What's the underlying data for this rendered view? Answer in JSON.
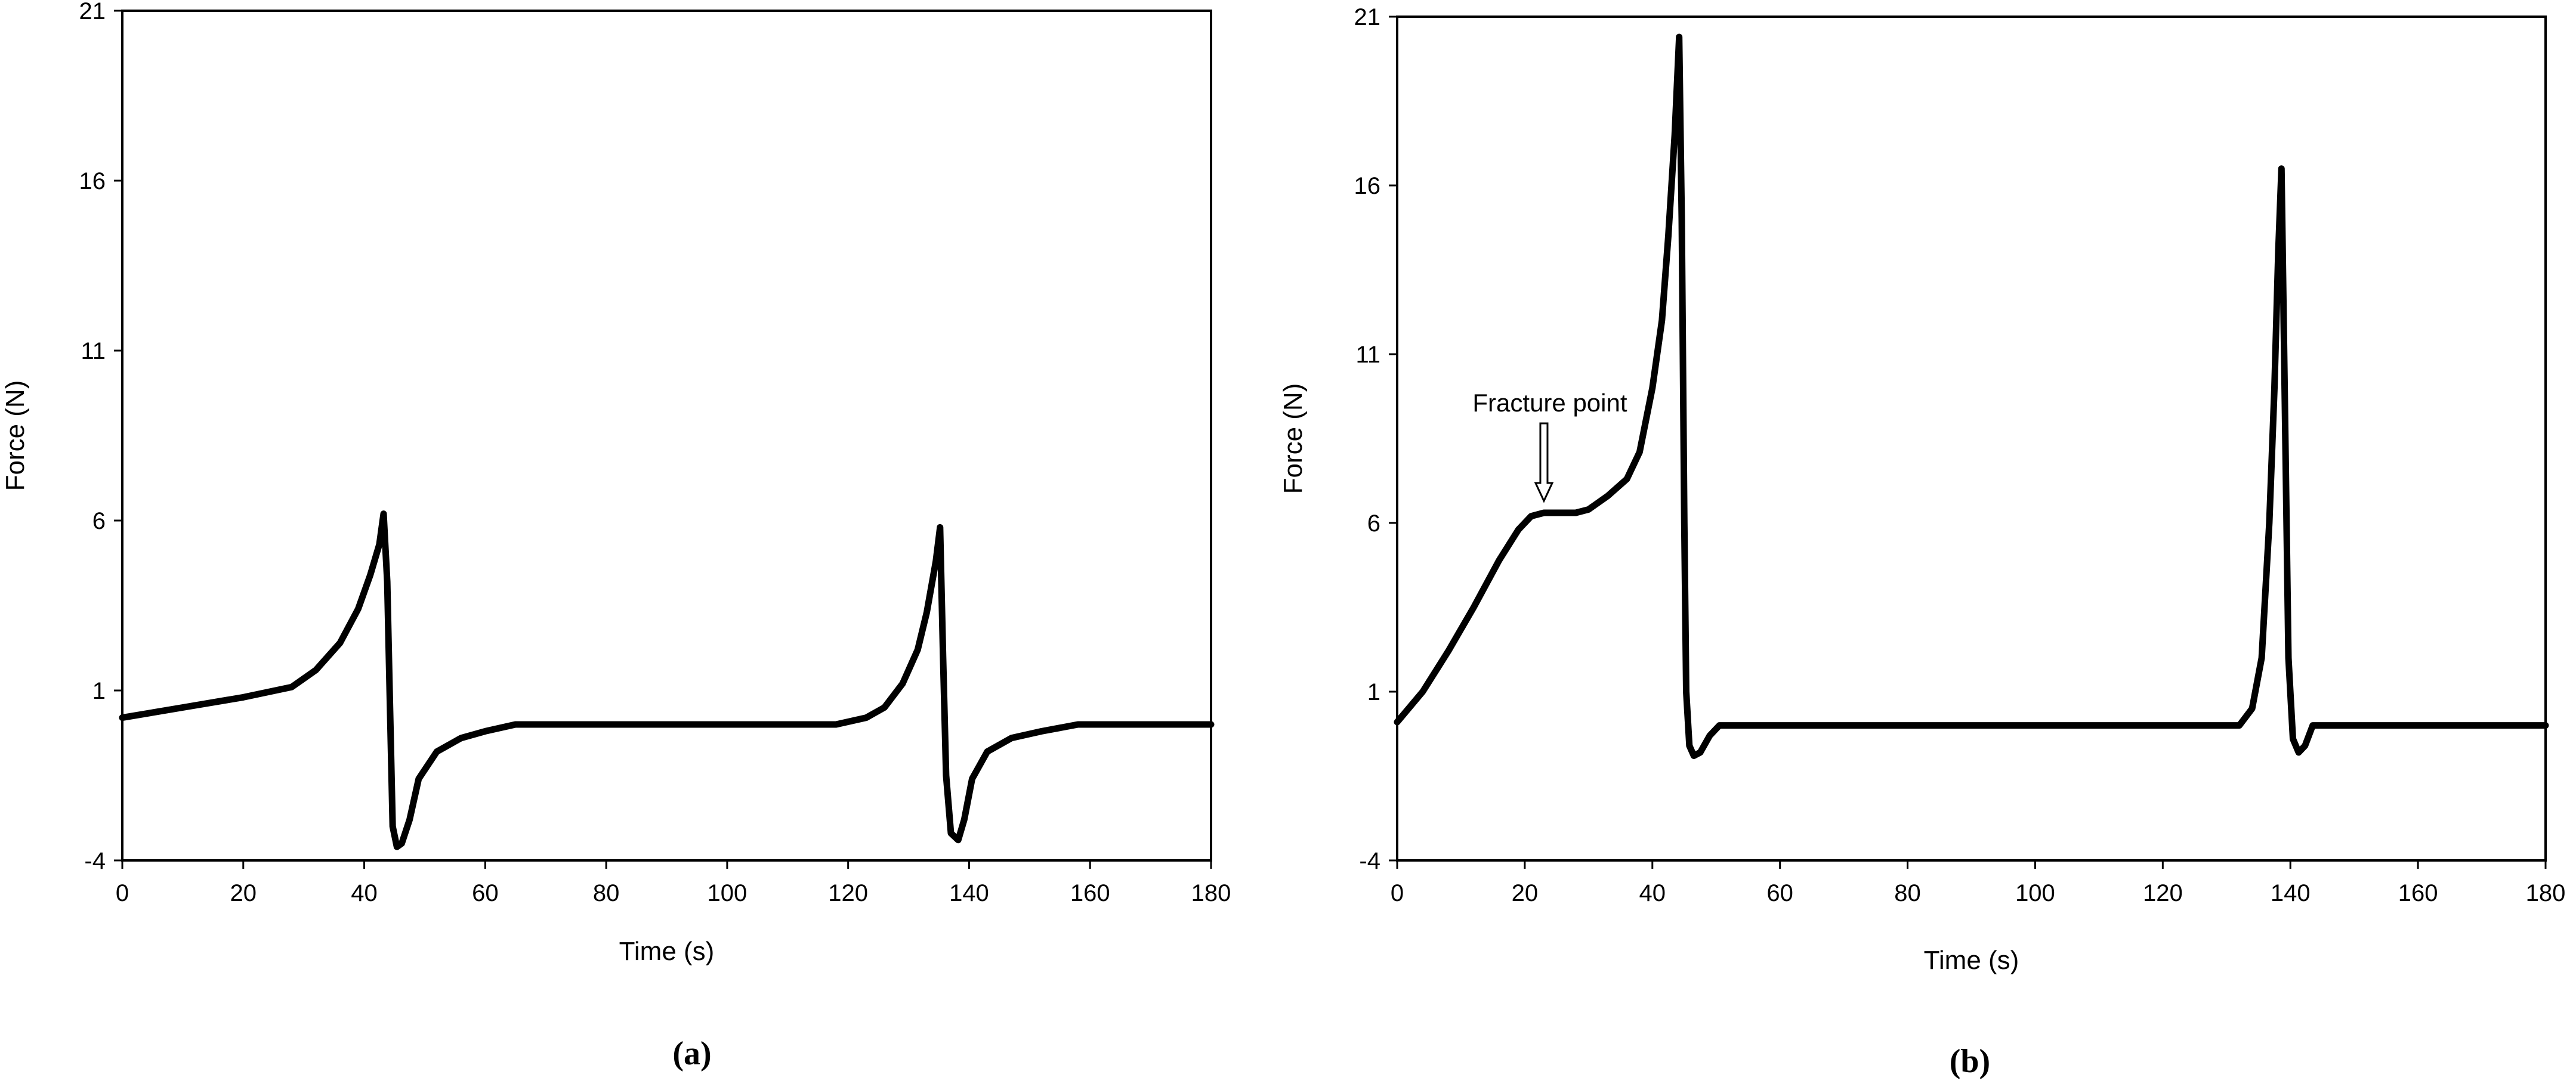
{
  "chart_data": [
    {
      "type": "line",
      "panel_label": "(a)",
      "xlabel": "Time (s)",
      "ylabel": "Force (N)",
      "xlim": [
        0,
        180
      ],
      "ylim": [
        -4,
        21
      ],
      "xticks": [
        0,
        20,
        40,
        60,
        80,
        100,
        120,
        140,
        160,
        180
      ],
      "yticks": [
        -4,
        1,
        6,
        11,
        16,
        21
      ],
      "grid": false,
      "series": [
        {
          "color": "#000000",
          "x": [
            0,
            10,
            20,
            28,
            32,
            36,
            39,
            41,
            42.5,
            43.2,
            43.8,
            44.2,
            44.7,
            45.4,
            46.2,
            47.5,
            49,
            52,
            56,
            60,
            65,
            70,
            75,
            80,
            100,
            118,
            123,
            126,
            129,
            131.5,
            133,
            134.5,
            135.2,
            135.7,
            136.2,
            137,
            138.2,
            139.2,
            140.5,
            143,
            147,
            152,
            158,
            165,
            180
          ],
          "y": [
            0.2,
            0.5,
            0.8,
            1.1,
            1.6,
            2.4,
            3.4,
            4.4,
            5.3,
            6.2,
            4.2,
            1.0,
            -3.0,
            -3.6,
            -3.5,
            -2.8,
            -1.6,
            -0.8,
            -0.4,
            -0.2,
            0,
            0,
            0,
            0,
            0,
            0,
            0.2,
            0.5,
            1.2,
            2.2,
            3.3,
            4.8,
            5.8,
            2.0,
            -1.5,
            -3.2,
            -3.4,
            -2.8,
            -1.6,
            -0.8,
            -0.4,
            -0.2,
            0,
            0,
            0
          ]
        }
      ]
    },
    {
      "type": "line",
      "panel_label": "(b)",
      "xlabel": "Time (s)",
      "ylabel": "Force (N)",
      "xlim": [
        0,
        180
      ],
      "ylim": [
        -4,
        21
      ],
      "xticks": [
        0,
        20,
        40,
        60,
        80,
        100,
        120,
        140,
        160,
        180
      ],
      "yticks": [
        -4,
        1,
        6,
        11,
        16,
        21
      ],
      "grid": false,
      "annotations": [
        {
          "text": "Fracture point",
          "x": 23,
          "y": 6.3
        }
      ],
      "series": [
        {
          "color": "#000000",
          "x": [
            0,
            4,
            8,
            12,
            16,
            19,
            21,
            23,
            25,
            28,
            30,
            33,
            36,
            38,
            40,
            41.5,
            42.5,
            43.5,
            44.2,
            44.6,
            45,
            45.3,
            45.8,
            46.5,
            47.5,
            49,
            50.5,
            52,
            60,
            80,
            100,
            120,
            132,
            134,
            135.5,
            136.7,
            137.5,
            138.1,
            138.6,
            139.1,
            139.7,
            140.4,
            141.3,
            142.3,
            143.5,
            147,
            160,
            180
          ],
          "y": [
            0.1,
            1.0,
            2.2,
            3.5,
            4.9,
            5.8,
            6.2,
            6.3,
            6.3,
            6.3,
            6.4,
            6.8,
            7.3,
            8.1,
            10.0,
            12.0,
            14.5,
            17.5,
            20.4,
            15.0,
            6.0,
            1.0,
            -0.6,
            -0.9,
            -0.8,
            -0.3,
            0,
            0,
            0,
            0,
            0,
            0,
            0,
            0.5,
            2.0,
            6.0,
            10.0,
            14.0,
            16.5,
            10.0,
            2.0,
            -0.4,
            -0.8,
            -0.6,
            0,
            0,
            0,
            0
          ]
        }
      ]
    }
  ]
}
